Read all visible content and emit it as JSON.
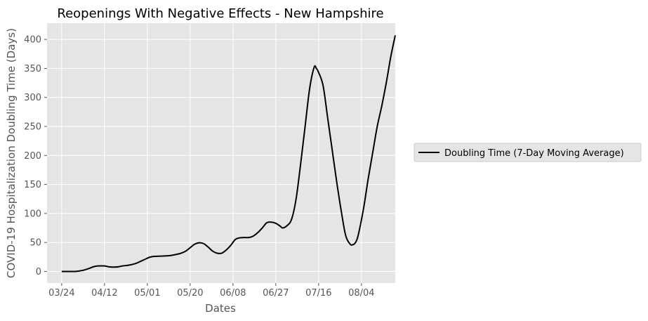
{
  "chart_data": {
    "type": "line",
    "title": "Reopenings With Negative Effects - New Hampshire",
    "xlabel": "Dates",
    "ylabel": "COVID-19 Hospitalization Doubling Time (Days)",
    "x_ticks": [
      "03/24",
      "04/12",
      "05/01",
      "05/20",
      "06/08",
      "06/27",
      "07/16",
      "08/04"
    ],
    "y_ticks": [
      0,
      50,
      100,
      150,
      200,
      250,
      300,
      350,
      400
    ],
    "ylim": [
      -20,
      428
    ],
    "xlim_days_from_first_tick": [
      -6.5,
      148
    ],
    "grid": true,
    "legend_position": "right",
    "series": [
      {
        "name": "Doubling Time (7-Day Moving Average)",
        "color": "#000000",
        "points": [
          [
            "03/24",
            0
          ],
          [
            "03/27",
            0
          ],
          [
            "03/30",
            0
          ],
          [
            "04/01",
            1
          ],
          [
            "04/03",
            2.5
          ],
          [
            "04/05",
            5
          ],
          [
            "04/07",
            8
          ],
          [
            "04/09",
            9.5
          ],
          [
            "04/12",
            9.5
          ],
          [
            "04/14",
            8
          ],
          [
            "04/16",
            7.5
          ],
          [
            "04/18",
            8
          ],
          [
            "04/20",
            9.5
          ],
          [
            "04/23",
            11
          ],
          [
            "04/26",
            14
          ],
          [
            "04/28",
            17.5
          ],
          [
            "04/30",
            21
          ],
          [
            "05/02",
            24.5
          ],
          [
            "05/04",
            26
          ],
          [
            "05/07",
            26.5
          ],
          [
            "05/10",
            27
          ],
          [
            "05/12",
            28
          ],
          [
            "05/14",
            29.5
          ],
          [
            "05/16",
            31.5
          ],
          [
            "05/18",
            35
          ],
          [
            "05/20",
            41
          ],
          [
            "05/22",
            47
          ],
          [
            "05/24",
            49.5
          ],
          [
            "05/26",
            48
          ],
          [
            "05/28",
            42
          ],
          [
            "05/30",
            35
          ],
          [
            "06/01",
            31.5
          ],
          [
            "06/03",
            31.5
          ],
          [
            "06/05",
            37
          ],
          [
            "06/07",
            45
          ],
          [
            "06/09",
            55
          ],
          [
            "06/11",
            58
          ],
          [
            "06/13",
            58.5
          ],
          [
            "06/15",
            58.5
          ],
          [
            "06/17",
            61
          ],
          [
            "06/19",
            67
          ],
          [
            "06/21",
            75
          ],
          [
            "06/23",
            84
          ],
          [
            "06/25",
            85
          ],
          [
            "06/27",
            83
          ],
          [
            "06/29",
            78
          ],
          [
            "06/30",
            75
          ],
          [
            "07/02",
            79
          ],
          [
            "07/04",
            90
          ],
          [
            "07/06",
            125
          ],
          [
            "07/08",
            185
          ],
          [
            "07/10",
            250
          ],
          [
            "07/12",
            315
          ],
          [
            "07/14",
            352
          ],
          [
            "07/15",
            350
          ],
          [
            "07/16",
            343
          ],
          [
            "07/18",
            320
          ],
          [
            "07/20",
            265
          ],
          [
            "07/22",
            210
          ],
          [
            "07/24",
            155
          ],
          [
            "07/26",
            105
          ],
          [
            "07/28",
            62
          ],
          [
            "07/30",
            47
          ],
          [
            "07/31",
            46
          ],
          [
            "08/01",
            48
          ],
          [
            "08/02",
            55
          ],
          [
            "08/03",
            70
          ],
          [
            "08/05",
            110
          ],
          [
            "08/07",
            160
          ],
          [
            "08/09",
            205
          ],
          [
            "08/11",
            250
          ],
          [
            "08/13",
            285
          ],
          [
            "08/15",
            325
          ],
          [
            "08/17",
            370
          ],
          [
            "08/19",
            407
          ]
        ]
      }
    ]
  }
}
